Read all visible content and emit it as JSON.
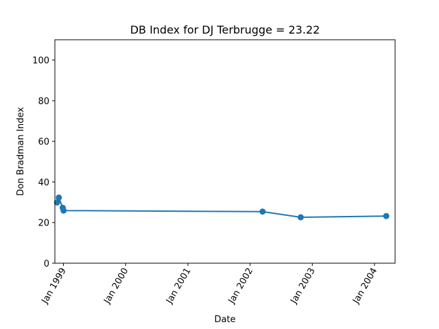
{
  "chart_data": {
    "type": "line",
    "title": "DB Index for DJ Terbrugge = 23.22",
    "xlabel": "Date",
    "ylabel": "Don Bradman Index",
    "ylim": [
      0,
      110
    ],
    "xlim": [
      "1998-11-12",
      "1999-03-01"
    ],
    "y_ticks": [
      0,
      20,
      40,
      60,
      80,
      100
    ],
    "x_ticks": [
      {
        "date": "1999-01-01",
        "label": "Jan 1999"
      },
      {
        "date": "2000-01-01",
        "label": "Jan 2000"
      },
      {
        "date": "2001-01-01",
        "label": "Jan 2001"
      },
      {
        "date": "2002-01-01",
        "label": "Jan 2002"
      },
      {
        "date": "2003-01-01",
        "label": "Jan 2003"
      },
      {
        "date": "2004-01-01",
        "label": "Jan 2004"
      }
    ],
    "grid": false,
    "color": "#1f77b4",
    "series": [
      {
        "points": [
          {
            "date": "1998-11-25",
            "value": 29.9
          },
          {
            "date": "1998-12-05",
            "value": 32.3
          },
          {
            "date": "1998-12-28",
            "value": 27.3
          },
          {
            "date": "1999-01-02",
            "value": 25.9
          },
          {
            "date": "2002-03-15",
            "value": 25.4
          },
          {
            "date": "2002-10-25",
            "value": 22.6
          },
          {
            "date": "2004-03-10",
            "value": 23.2
          }
        ]
      }
    ]
  }
}
